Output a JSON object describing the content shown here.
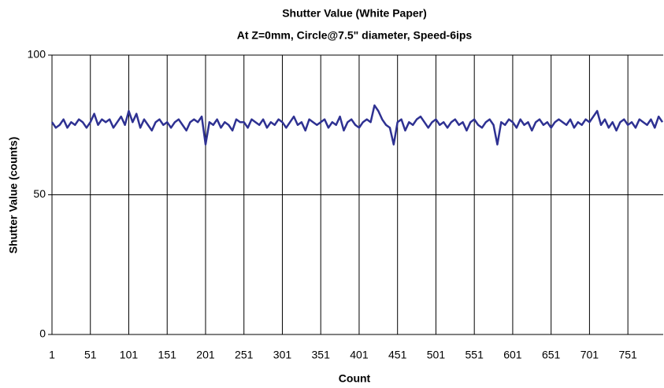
{
  "chart_data": {
    "type": "line",
    "title": "Shutter Value (White Paper)",
    "subtitle": "At Z=0mm, Circle@7.5\" diameter, Speed-6ips",
    "x_label": "Count",
    "y_label": "Shutter Value (counts)",
    "xlim": [
      1,
      797
    ],
    "ylim": [
      0,
      100
    ],
    "xticks": [
      1,
      51,
      101,
      151,
      201,
      251,
      301,
      351,
      401,
      451,
      501,
      551,
      601,
      651,
      701,
      751
    ],
    "yticks": [
      0,
      50,
      100
    ],
    "grid": true,
    "x": [
      1,
      6,
      11,
      16,
      21,
      26,
      31,
      36,
      41,
      46,
      51,
      56,
      61,
      66,
      71,
      76,
      81,
      86,
      91,
      96,
      101,
      106,
      111,
      116,
      121,
      126,
      131,
      136,
      141,
      146,
      151,
      156,
      161,
      166,
      171,
      176,
      181,
      186,
      191,
      196,
      201,
      206,
      211,
      216,
      221,
      226,
      231,
      236,
      241,
      246,
      251,
      256,
      261,
      266,
      271,
      276,
      281,
      286,
      291,
      296,
      301,
      306,
      311,
      316,
      321,
      326,
      331,
      336,
      341,
      346,
      351,
      356,
      361,
      366,
      371,
      376,
      381,
      386,
      391,
      396,
      401,
      406,
      411,
      416,
      421,
      426,
      431,
      436,
      441,
      446,
      451,
      456,
      461,
      466,
      471,
      476,
      481,
      486,
      491,
      496,
      501,
      506,
      511,
      516,
      521,
      526,
      531,
      536,
      541,
      546,
      551,
      556,
      561,
      566,
      571,
      576,
      581,
      586,
      591,
      596,
      601,
      606,
      611,
      616,
      621,
      626,
      631,
      636,
      641,
      646,
      651,
      656,
      661,
      666,
      671,
      676,
      681,
      686,
      691,
      696,
      701,
      706,
      711,
      716,
      721,
      726,
      731,
      736,
      741,
      746,
      751,
      756,
      761,
      766,
      771,
      776,
      781,
      786,
      791,
      796
    ],
    "series": [
      {
        "name": "Shutter Value",
        "color": "#2e3192",
        "values": [
          76,
          74,
          75,
          77,
          74,
          76,
          75,
          77,
          76,
          74,
          76,
          79,
          75,
          77,
          76,
          77,
          74,
          76,
          78,
          75,
          80,
          76,
          79,
          74,
          77,
          75,
          73,
          76,
          77,
          75,
          76,
          74,
          76,
          77,
          75,
          73,
          76,
          77,
          76,
          78,
          68,
          76,
          75,
          77,
          74,
          76,
          75,
          73,
          77,
          76,
          76,
          74,
          77,
          76,
          75,
          77,
          74,
          76,
          75,
          77,
          76,
          74,
          76,
          78,
          75,
          76,
          73,
          77,
          76,
          75,
          76,
          77,
          74,
          76,
          75,
          78,
          73,
          76,
          77,
          75,
          74,
          76,
          77,
          76,
          82,
          80,
          77,
          75,
          74,
          68,
          76,
          77,
          73,
          76,
          75,
          77,
          78,
          76,
          74,
          76,
          77,
          75,
          76,
          74,
          76,
          77,
          75,
          76,
          73,
          76,
          77,
          75,
          74,
          76,
          77,
          75,
          68,
          76,
          75,
          77,
          76,
          74,
          77,
          75,
          76,
          73,
          76,
          77,
          75,
          76,
          74,
          76,
          77,
          76,
          75,
          77,
          74,
          76,
          75,
          77,
          76,
          78,
          80,
          75,
          77,
          74,
          76,
          73,
          76,
          77,
          75,
          76,
          74,
          77,
          76,
          75,
          77,
          74,
          78,
          76
        ]
      }
    ]
  }
}
